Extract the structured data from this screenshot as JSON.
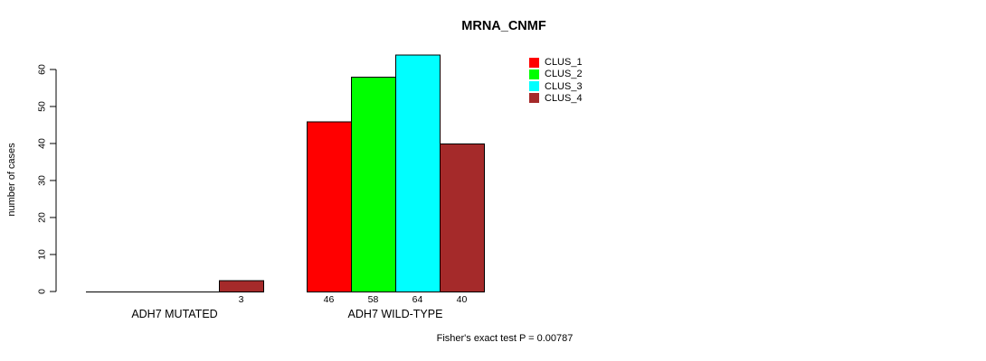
{
  "title": "MRNA_CNMF",
  "footer": "Fisher's exact test P = 0.00787",
  "y_axis": {
    "label": "number of cases",
    "ticks": [
      0,
      10,
      20,
      30,
      40,
      50,
      60
    ]
  },
  "legend": {
    "items": [
      {
        "label": "CLUS_1",
        "color": "#FF0000"
      },
      {
        "label": "CLUS_2",
        "color": "#00FF00"
      },
      {
        "label": "CLUS_3",
        "color": "#00FFFF"
      },
      {
        "label": "CLUS_4",
        "color": "#A52A2A"
      }
    ]
  },
  "chart_data": {
    "type": "bar",
    "title": "MRNA_CNMF",
    "xlabel": "",
    "ylabel": "number of cases",
    "ylim": [
      0,
      60
    ],
    "grid": false,
    "legend_position": "top-right-inside",
    "bar_border_color": "#000000",
    "categories": [
      "ADH7 MUTATED",
      "ADH7 WILD-TYPE"
    ],
    "series": [
      {
        "name": "CLUS_1",
        "color": "#FF0000",
        "values": [
          0,
          46
        ]
      },
      {
        "name": "CLUS_2",
        "color": "#00FF00",
        "values": [
          0,
          58
        ]
      },
      {
        "name": "CLUS_3",
        "color": "#00FFFF",
        "values": [
          0,
          64
        ]
      },
      {
        "name": "CLUS_4",
        "color": "#A52A2A",
        "values": [
          3,
          40
        ]
      }
    ],
    "value_labels": {
      "shown_for_nonzero_bars": true,
      "values_shown": [
        3,
        46,
        58,
        64,
        40
      ]
    },
    "annotation": "Fisher's exact test P = 0.00787"
  }
}
